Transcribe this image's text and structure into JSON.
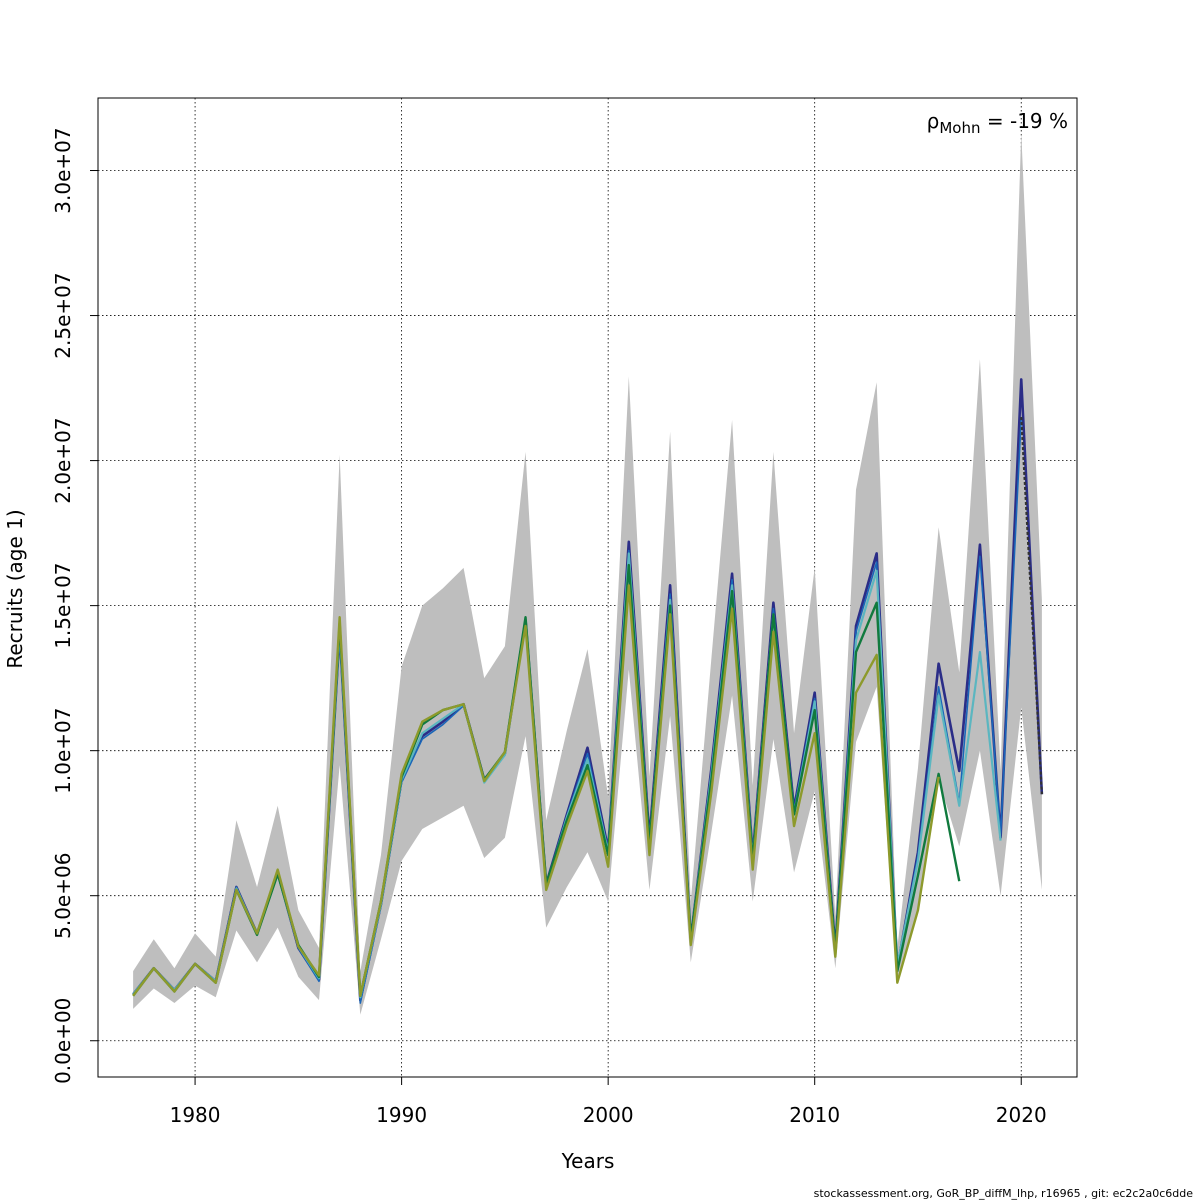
{
  "chart_data": {
    "type": "line",
    "xlabel": "Years",
    "ylabel": "Recruits (age 1)",
    "xlim": [
      1975.3,
      2022.7
    ],
    "ylim": [
      -1250000,
      32500000
    ],
    "x_ticks": [
      1980,
      1990,
      2000,
      2010,
      2020
    ],
    "x_tick_labels": [
      "1980",
      "1990",
      "2000",
      "2010",
      "2020"
    ],
    "y_ticks": [
      0,
      5000000,
      10000000,
      15000000,
      20000000,
      25000000,
      30000000
    ],
    "y_tick_labels": [
      "0.0e+00",
      "5.0e+06",
      "1.0e+07",
      "1.5e+07",
      "2.0e+07",
      "2.5e+07",
      "3.0e+07"
    ],
    "grid": true,
    "annotation": {
      "rho": "ρ",
      "sub": "Mohn",
      "text": " = -19 %"
    },
    "footer": "stockassessment.org, GoR_BP_diffM_lhp, r16965 , git: ec2c2a0c6dde",
    "colors": {
      "band": "#bebebe",
      "series": [
        "#2b2d87",
        "#1a66b8",
        "#5bb6c0",
        "#117a3e",
        "#8d9a2c"
      ],
      "last_point_line": "#333333",
      "grid": "#000000"
    },
    "confidence_band": {
      "x": [
        1977,
        1978,
        1979,
        1980,
        1981,
        1982,
        1983,
        1984,
        1985,
        1986,
        1987,
        1988,
        1989,
        1990,
        1991,
        1992,
        1993,
        1994,
        1995,
        1996,
        1997,
        1998,
        1999,
        2000,
        2001,
        2002,
        2003,
        2004,
        2005,
        2006,
        2007,
        2008,
        2009,
        2010,
        2011,
        2012,
        2013,
        2014,
        2015,
        2016,
        2017,
        2018,
        2019,
        2020,
        2021
      ],
      "lower": [
        1100000,
        1800000,
        1300000,
        1900000,
        1500000,
        3800000,
        2700000,
        3900000,
        2200000,
        1400000,
        9500000,
        900000,
        3500000,
        6200000,
        7300000,
        7700000,
        8100000,
        6300000,
        7000000,
        10500000,
        3900000,
        5300000,
        6500000,
        4800000,
        12800000,
        5200000,
        11200000,
        2700000,
        7200000,
        11900000,
        4800000,
        10400000,
        5800000,
        8600000,
        2500000,
        10300000,
        12200000,
        2000000,
        4500000,
        9000000,
        6700000,
        10000000,
        5000000,
        11500000,
        5200000
      ],
      "upper": [
        2400000,
        3500000,
        2500000,
        3700000,
        2900000,
        7600000,
        5300000,
        8100000,
        4500000,
        3200000,
        20200000,
        2400000,
        6400000,
        12900000,
        15000000,
        15600000,
        16300000,
        12500000,
        13600000,
        20300000,
        7600000,
        10700000,
        13500000,
        8400000,
        22900000,
        9100000,
        21000000,
        4800000,
        13200000,
        21400000,
        8800000,
        20300000,
        10600000,
        16300000,
        4300000,
        19000000,
        22700000,
        3200000,
        9400000,
        17700000,
        12700000,
        23500000,
        9300000,
        31300000,
        15200000
      ]
    },
    "series": [
      {
        "x": [
          1977,
          1978,
          1979,
          1980,
          1981,
          1982,
          1983,
          1984,
          1985,
          1986,
          1987,
          1988,
          1989,
          1990,
          1991,
          1992,
          1993,
          1994,
          1995,
          1996,
          1997,
          1998,
          1999,
          2000,
          2001,
          2002,
          2003,
          2004,
          2005,
          2006,
          2007,
          2008,
          2009,
          2010,
          2011,
          2012,
          2013,
          2014,
          2015,
          2016,
          2017,
          2018,
          2019,
          2020,
          2021
        ],
        "values": [
          1600000,
          2500000,
          1750000,
          2650000,
          2050000,
          5300000,
          3700000,
          5800000,
          3200000,
          2100000,
          14100000,
          1400000,
          4700000,
          9000000,
          10500000,
          11000000,
          11600000,
          9000000,
          9900000,
          14500000,
          5400000,
          7800000,
          10100000,
          6600000,
          17200000,
          7000000,
          15700000,
          3500000,
          9400000,
          16100000,
          6400000,
          15100000,
          8000000,
          12000000,
          3200000,
          14300000,
          16800000,
          2500000,
          6500000,
          13000000,
          9300000,
          17100000,
          7000000,
          22800000,
          8500000
        ]
      },
      {
        "x": [
          1977,
          1978,
          1979,
          1980,
          1981,
          1982,
          1983,
          1984,
          1985,
          1986,
          1987,
          1988,
          1989,
          1990,
          1991,
          1992,
          1993,
          1994,
          1995,
          1996,
          1997,
          1998,
          1999,
          2000,
          2001,
          2002,
          2003,
          2004,
          2005,
          2006,
          2007,
          2008,
          2009,
          2010,
          2011,
          2012,
          2013,
          2014,
          2015,
          2016,
          2017,
          2018,
          2019,
          2020
        ],
        "values": [
          1600000,
          2500000,
          1750000,
          2650000,
          2050000,
          5300000,
          3700000,
          5800000,
          3200000,
          2050000,
          14000000,
          1300000,
          4650000,
          8900000,
          10400000,
          10900000,
          11550000,
          8950000,
          9850000,
          14400000,
          5400000,
          7750000,
          9900000,
          6550000,
          16900000,
          6900000,
          15400000,
          3450000,
          9300000,
          15900000,
          6350000,
          14900000,
          7950000,
          11800000,
          3150000,
          14100000,
          16500000,
          2500000,
          6400000,
          12200000,
          8200000,
          16700000,
          7100000,
          21500000
        ]
      },
      {
        "x": [
          1977,
          1978,
          1979,
          1980,
          1981,
          1982,
          1983,
          1984,
          1985,
          1986,
          1987,
          1988,
          1989,
          1990,
          1991,
          1992,
          1993,
          1994,
          1995,
          1996,
          1997,
          1998,
          1999,
          2000,
          2001,
          2002,
          2003,
          2004,
          2005,
          2006,
          2007,
          2008,
          2009,
          2010,
          2011,
          2012,
          2013,
          2014,
          2015,
          2016,
          2017,
          2018,
          2019
        ],
        "values": [
          1600000,
          2500000,
          1750000,
          2650000,
          2050000,
          5250000,
          3700000,
          5750000,
          3250000,
          2150000,
          14200000,
          1500000,
          4700000,
          9000000,
          10600000,
          11100000,
          11600000,
          8900000,
          9850000,
          14500000,
          5300000,
          7700000,
          9700000,
          6500000,
          16800000,
          6800000,
          15200000,
          3500000,
          9200000,
          15700000,
          6300000,
          14700000,
          7800000,
          11700000,
          3100000,
          13800000,
          16200000,
          2600000,
          6200000,
          11900000,
          8100000,
          13400000,
          6900000
        ]
      },
      {
        "x": [
          1977,
          1978,
          1979,
          1980,
          1981,
          1982,
          1983,
          1984,
          1985,
          1986,
          1987,
          1988,
          1989,
          1990,
          1991,
          1992,
          1993,
          1994,
          1995,
          1996,
          1997,
          1998,
          1999,
          2000,
          2001,
          2002,
          2003,
          2004,
          2005,
          2006,
          2007,
          2008,
          2009,
          2010,
          2011,
          2012,
          2013,
          2014,
          2015,
          2016,
          2017
        ],
        "values": [
          1550000,
          2500000,
          1700000,
          2650000,
          2000000,
          5200000,
          3650000,
          5750000,
          3300000,
          2200000,
          14400000,
          1550000,
          4800000,
          9100000,
          10900000,
          11400000,
          11600000,
          9000000,
          9950000,
          14600000,
          5400000,
          7600000,
          9500000,
          6400000,
          16400000,
          6800000,
          15000000,
          3500000,
          9000000,
          15500000,
          6200000,
          14700000,
          7800000,
          11400000,
          3100000,
          13400000,
          15100000,
          2400000,
          5700000,
          9200000,
          5500000
        ]
      },
      {
        "x": [
          1977,
          1978,
          1979,
          1980,
          1981,
          1982,
          1983,
          1984,
          1985,
          1986,
          1987,
          1988,
          1989,
          1990,
          1991,
          1992,
          1993,
          1994,
          1995,
          1996,
          1997,
          1998,
          1999,
          2000,
          2001,
          2002,
          2003,
          2004,
          2005,
          2006,
          2007,
          2008,
          2009,
          2010,
          2011,
          2012,
          2013,
          2014,
          2015,
          2016
        ],
        "values": [
          1550000,
          2500000,
          1700000,
          2650000,
          2000000,
          5200000,
          3700000,
          5900000,
          3250000,
          2250000,
          14600000,
          1550000,
          4800000,
          9200000,
          11000000,
          11400000,
          11600000,
          8950000,
          9950000,
          14300000,
          5200000,
          7400000,
          9300000,
          6000000,
          15700000,
          6400000,
          14700000,
          3300000,
          8600000,
          14900000,
          5900000,
          14100000,
          7400000,
          10600000,
          2900000,
          12000000,
          13300000,
          2000000,
          4500000,
          9100000
        ]
      }
    ],
    "last_point_line": {
      "x": [
        2020,
        2021
      ],
      "values": [
        21500000,
        8500000
      ]
    }
  }
}
